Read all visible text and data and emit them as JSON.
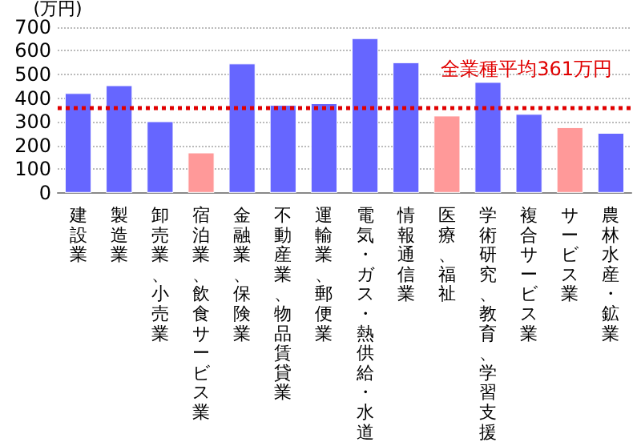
{
  "chart_data": {
    "type": "bar",
    "ylabel": "(万円)",
    "categories": [
      "建設業",
      "製造業",
      "卸売業、小売業",
      "宿泊業、飲食サービス業",
      "金融業、保険業",
      "不動産業、物品賃貸業",
      "運輸業、郵便業",
      "電気・ガス・熱供給・水道",
      "情報通信業",
      "医療、福祉",
      "学術研究、教育、学習支援",
      "複合サービス業",
      "サービス業",
      "農林水産・鉱業"
    ],
    "values": [
      421,
      454,
      302,
      170,
      546,
      371,
      378,
      653,
      551,
      326,
      468,
      333,
      277,
      253
    ],
    "colors": [
      "#6666ff",
      "#6666ff",
      "#6666ff",
      "#ff9999",
      "#6666ff",
      "#6666ff",
      "#6666ff",
      "#6666ff",
      "#6666ff",
      "#ff9999",
      "#6666ff",
      "#6666ff",
      "#ff9999",
      "#6666ff"
    ],
    "ylim": [
      0,
      700
    ],
    "yticks": [
      0,
      100,
      200,
      300,
      400,
      500,
      600,
      700
    ],
    "grid": "y",
    "ref_lines": [
      {
        "axis": "y",
        "value": 361,
        "label": "全業種平均361万円",
        "color": "#e00000",
        "line_style": "dotted"
      }
    ]
  }
}
